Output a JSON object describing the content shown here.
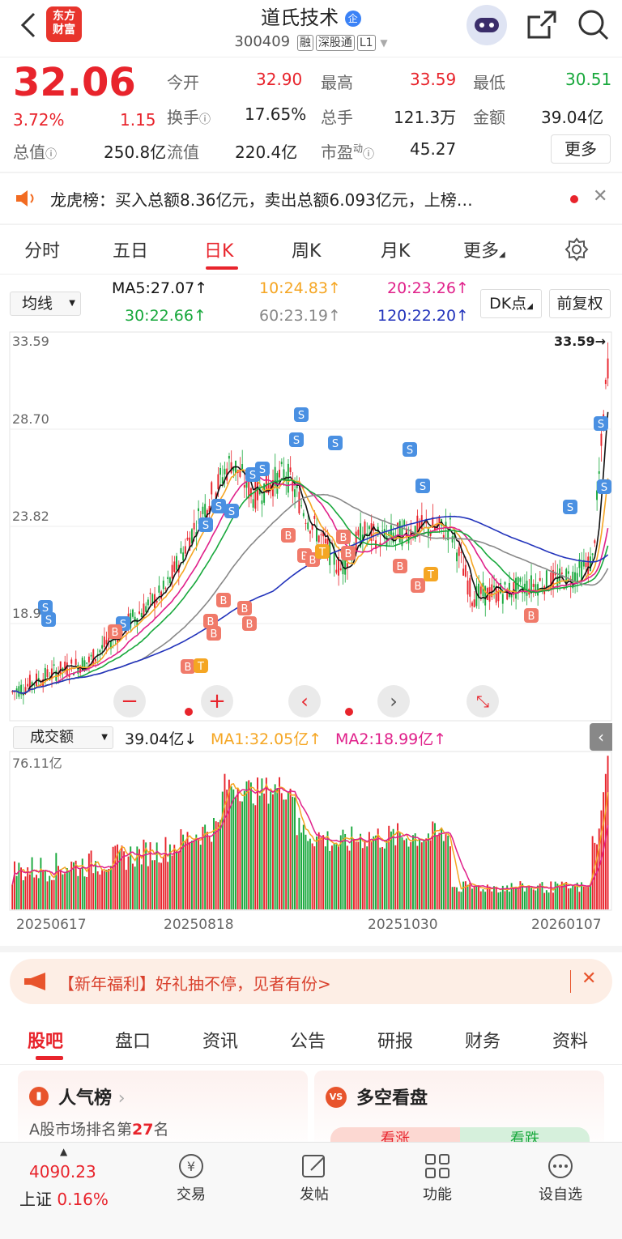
{
  "header": {
    "stock_name": "道氏技术",
    "code": "300409",
    "tags": [
      "融",
      "深股通",
      "L1"
    ],
    "logo_line1": "东方",
    "logo_line2": "财富"
  },
  "quote": {
    "price": "32.06",
    "pct": "3.72%",
    "change": "1.15",
    "open_label": "今开",
    "open": "32.90",
    "high_label": "最高",
    "high": "33.59",
    "low_label": "最低",
    "low": "30.51",
    "turnover_label": "换手",
    "turnover": "17.65%",
    "volume_label": "总手",
    "volume": "121.3万",
    "amount_label": "金额",
    "amount": "39.04亿",
    "mktcap_label": "总值",
    "mktcap": "250.8亿",
    "float_label": "流值",
    "float": "220.4亿",
    "pe_label": "市盈",
    "pe_sup": "动",
    "pe": "45.27",
    "more": "更多"
  },
  "notice": {
    "text": "龙虎榜：买入总额8.36亿元，卖出总额6.093亿元，上榜…"
  },
  "tabs": [
    "分时",
    "五日",
    "日K",
    "周K",
    "月K",
    "更多"
  ],
  "active_tab": 2,
  "ma": {
    "selector": "均线",
    "ma5": "MA5:27.07↑",
    "ma10": "10:24.83↑",
    "ma20": "20:23.26↑",
    "ma30": "30:22.66↑",
    "ma60": "60:23.19↑",
    "ma120": "120:22.20↑",
    "dk": "DK点",
    "fq": "前复权"
  },
  "kchart": {
    "y_labels": [
      "33.59",
      "28.70",
      "23.82",
      "18.9"
    ],
    "max_tag": "33.59→"
  },
  "vol": {
    "selector": "成交额",
    "value": "39.04亿↓",
    "ma1": "MA1:32.05亿↑",
    "ma2": "MA2:18.99亿↑",
    "max": "76.11亿",
    "dates": [
      "20250617",
      "20250818",
      "20251030",
      "20260107"
    ]
  },
  "banner": {
    "text": "【新年福利】好礼抽不停，见者有份>"
  },
  "bottom_tabs": [
    "股吧",
    "盘口",
    "资讯",
    "公告",
    "研报",
    "财务",
    "资料"
  ],
  "cards": {
    "hot_title": "人气榜",
    "hot_sub_pre": "A股市场排名第",
    "hot_rank": "27",
    "hot_sub_post": "名",
    "ls_title": "多空看盘",
    "up": "看涨",
    "down": "看跌"
  },
  "nav": {
    "index_value": "4090.23",
    "index_name": "上证",
    "index_pct": "0.16%",
    "trade": "交易",
    "post": "发帖",
    "func": "功能",
    "watch": "设自选"
  },
  "colors": {
    "up": "#e8242c",
    "down": "#18a83c",
    "ma5": "#111111",
    "ma10": "#f5a623",
    "ma20": "#e0208a",
    "ma30": "#18a83c",
    "ma60": "#888888",
    "ma120": "#2233bb"
  }
}
